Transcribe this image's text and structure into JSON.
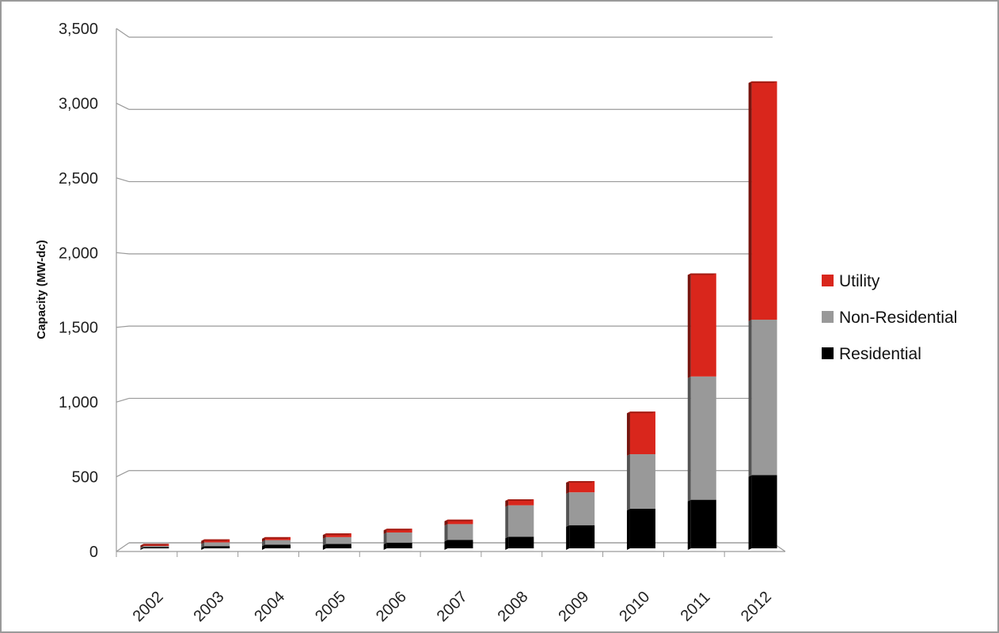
{
  "chart_data": {
    "type": "bar",
    "stacked": true,
    "title": "",
    "xlabel": "",
    "ylabel": "Capacity (MW-dc)",
    "ylim": [
      0,
      3500
    ],
    "yticks": [
      0,
      500,
      1000,
      1500,
      2000,
      2500,
      3000,
      3500
    ],
    "ytick_labels": [
      "0",
      "500",
      "1,000",
      "1,500",
      "2,000",
      "2,500",
      "3,000",
      "3,500"
    ],
    "categories": [
      "2002",
      "2003",
      "2004",
      "2005",
      "2006",
      "2007",
      "2008",
      "2009",
      "2010",
      "2011",
      "2012"
    ],
    "series": [
      {
        "name": "Residential",
        "color": "#000000",
        "values": [
          8,
          15,
          25,
          30,
          38,
          57,
          78,
          155,
          265,
          325,
          490
        ]
      },
      {
        "name": "Non-Residential",
        "color": "#999999",
        "values": [
          8,
          25,
          30,
          45,
          68,
          105,
          210,
          220,
          365,
          825,
          1040
        ]
      },
      {
        "name": "Utility",
        "color": "#d9261c",
        "values": [
          14,
          20,
          20,
          25,
          25,
          30,
          40,
          75,
          285,
          690,
          1595
        ]
      }
    ],
    "grid": true,
    "legend_position": "right"
  }
}
